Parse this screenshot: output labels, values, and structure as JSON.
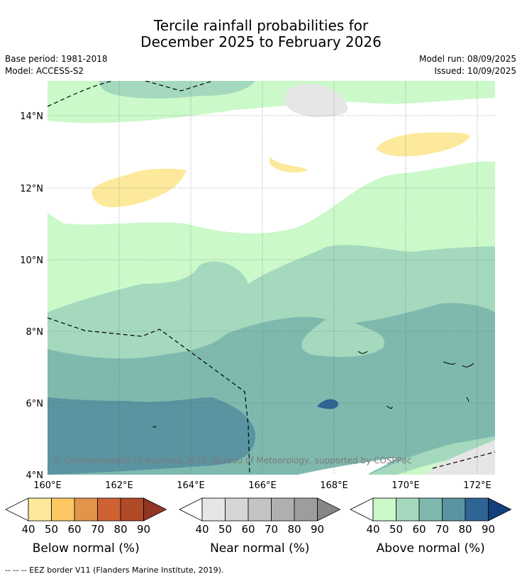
{
  "title": {
    "line1": "Tercile rainfall probabilities for",
    "line2": "December 2025 to February 2026"
  },
  "meta": {
    "base_period": "Base period: 1981-2018",
    "model": "Model: ACCESS-S2",
    "model_run": "Model run: 08/09/2025",
    "issued": "Issued: 10/09/2025"
  },
  "map": {
    "lat_labels": [
      "14°N",
      "12°N",
      "10°N",
      "8°N",
      "6°N",
      "4°N"
    ],
    "lon_labels": [
      "160°E",
      "162°E",
      "164°E",
      "166°E",
      "168°E",
      "170°E",
      "172°E"
    ],
    "copyright": "© Commonwealth of Australia 2025, Bureau of Meteorology, supported by COSPPac"
  },
  "colorbars": [
    {
      "title": "Below normal (%)",
      "ticks": [
        "40",
        "50",
        "60",
        "70",
        "80",
        "90"
      ],
      "colors": [
        "#fde99b",
        "#fcc864",
        "#e2944a",
        "#cf6233",
        "#b04a27",
        "#913625"
      ]
    },
    {
      "title": "Near normal (%)",
      "ticks": [
        "40",
        "50",
        "60",
        "70",
        "80",
        "90"
      ],
      "colors": [
        "#e6e6e6",
        "#d6d6d6",
        "#c4c4c4",
        "#b0b0b0",
        "#9d9d9d",
        "#868686"
      ]
    },
    {
      "title": "Above normal (%)",
      "ticks": [
        "40",
        "50",
        "60",
        "70",
        "80",
        "90"
      ],
      "colors": [
        "#cbf9c9",
        "#a4d9be",
        "#7fb9ae",
        "#5a94a1",
        "#2f6495",
        "#153f7a"
      ]
    }
  ],
  "footnote": "--  --  -- EEZ border V11 (Flanders Marine Institute, 2019)."
}
